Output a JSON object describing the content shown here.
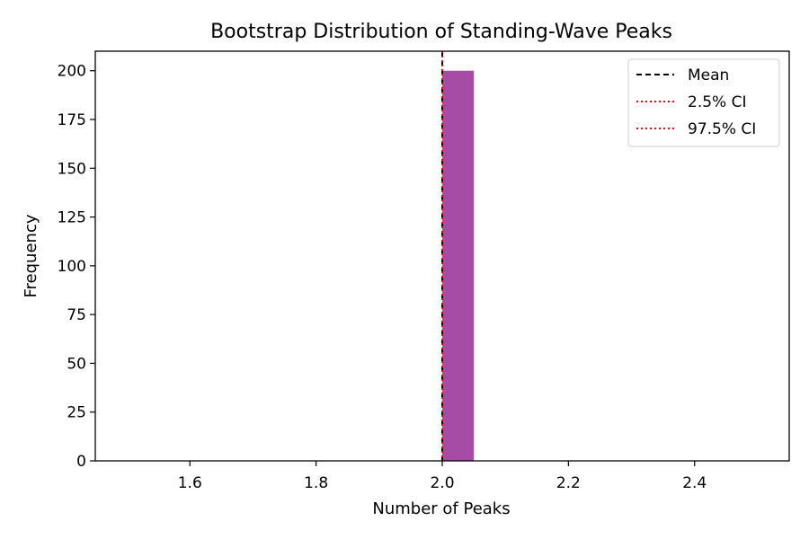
{
  "chart_data": {
    "type": "bar",
    "title": "Bootstrap Distribution of Standing-Wave Peaks",
    "xlabel": "Number of Peaks",
    "ylabel": "Frequency",
    "xlim": [
      1.45,
      2.55
    ],
    "ylim": [
      0,
      210
    ],
    "xticks": [
      1.6,
      1.8,
      2.0,
      2.2,
      2.4
    ],
    "xtick_labels": [
      "1.6",
      "1.8",
      "2.0",
      "2.2",
      "2.4"
    ],
    "yticks": [
      0,
      25,
      50,
      75,
      100,
      125,
      150,
      175,
      200
    ],
    "ytick_labels": [
      "0",
      "25",
      "50",
      "75",
      "100",
      "125",
      "150",
      "175",
      "200"
    ],
    "bars": [
      {
        "x0": 2.0,
        "x1": 2.05,
        "value": 200
      }
    ],
    "bar_color": "#a64ca6",
    "vlines": [
      {
        "name": "Mean",
        "x": 2.0,
        "color": "#000000",
        "style": "dashed"
      },
      {
        "name": "2.5% CI",
        "x": 2.0,
        "color": "#ff0000",
        "style": "dotted"
      },
      {
        "name": "97.5% CI",
        "x": 2.0,
        "color": "#ff0000",
        "style": "dotted"
      }
    ],
    "legend": {
      "placement": "top-right",
      "entries": [
        {
          "label": "Mean",
          "color": "#000000",
          "style": "dashed"
        },
        {
          "label": "2.5% CI",
          "color": "#ff0000",
          "style": "dotted"
        },
        {
          "label": "97.5% CI",
          "color": "#ff0000",
          "style": "dotted"
        }
      ]
    },
    "grid": false
  }
}
